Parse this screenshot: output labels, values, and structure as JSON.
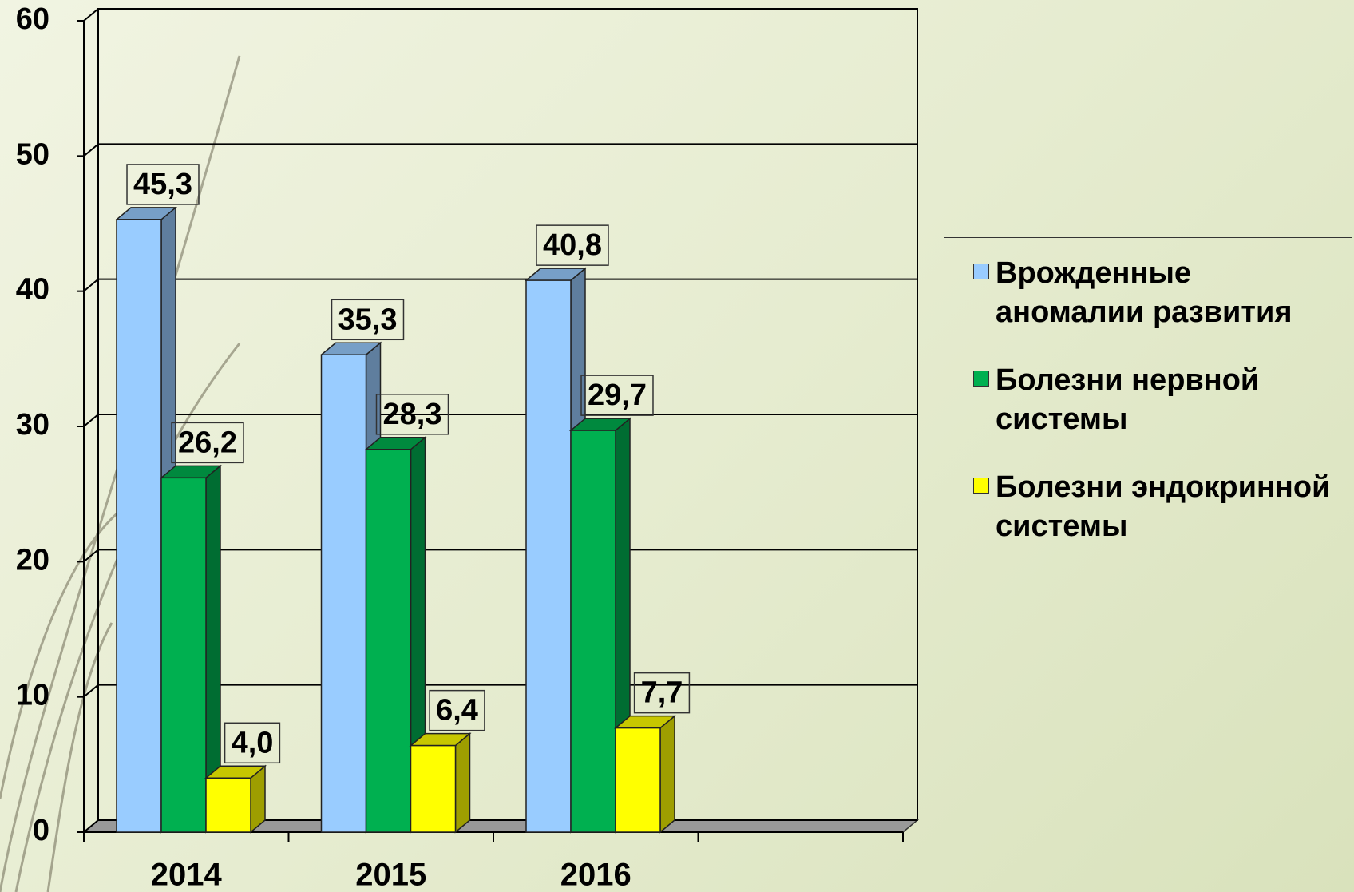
{
  "chart_data": {
    "type": "bar3d",
    "categories": [
      "2014",
      "2015",
      "2016",
      null
    ],
    "series": [
      {
        "name": "Врожденные аномалии развития",
        "color": "#99ccff",
        "values": [
          45.3,
          35.3,
          40.8,
          null
        ],
        "value_labels": [
          "45,3",
          "35,3",
          "40,8",
          null
        ]
      },
      {
        "name": "Болезни нервной системы",
        "color": "#00b050",
        "values": [
          26.2,
          28.3,
          29.7,
          null
        ],
        "value_labels": [
          "26,2",
          "28,3",
          "29,7",
          null
        ]
      },
      {
        "name": "Болезни эндокринной системы",
        "color": "#ffff00",
        "values": [
          4.0,
          6.4,
          7.7,
          null
        ],
        "value_labels": [
          "4,0",
          "6,4",
          "7,7",
          null
        ]
      }
    ],
    "ylim": [
      0,
      60
    ],
    "yticks": [
      0,
      10,
      20,
      30,
      40,
      50,
      60
    ],
    "grid": true,
    "legend": "right"
  }
}
